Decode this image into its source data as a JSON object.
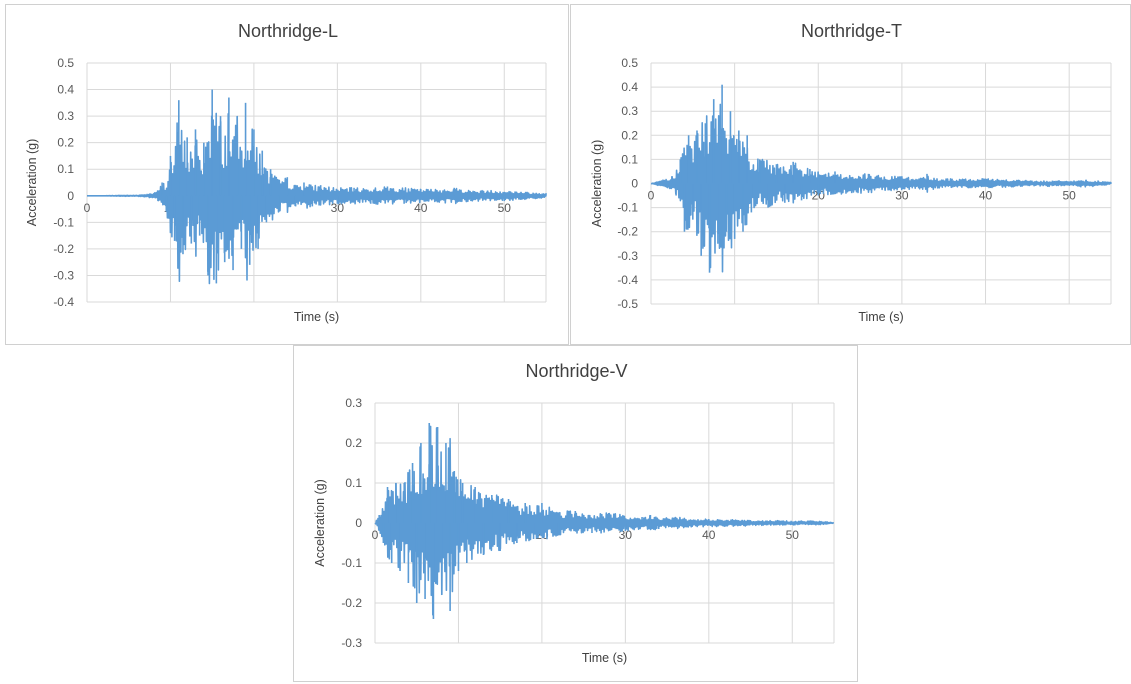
{
  "colors": {
    "series": "#5b9bd5",
    "grid": "#d9d9d9",
    "text": "#404040",
    "border": "#d0d0d0"
  },
  "chart_data": [
    {
      "type": "line",
      "title": "Northridge-L",
      "xlabel": "Time (s)",
      "ylabel": "Acceleration (g)",
      "xlim": [
        0,
        55
      ],
      "ylim": [
        -0.4,
        0.5
      ],
      "xticks": [
        "0",
        "10",
        "20",
        "30",
        "40",
        "50"
      ],
      "yticks": [
        "0.5",
        "0.4",
        "0.3",
        "0.2",
        "0.1",
        "0",
        "-0.1",
        "-0.2",
        "-0.3",
        "-0.4"
      ],
      "grid": true,
      "legend": "none",
      "series": [
        {
          "x": [
            0,
            2,
            4,
            6,
            7,
            7.5,
            8,
            8.5,
            9,
            9.5,
            10,
            10.5,
            11,
            11.5,
            12,
            12.5,
            13,
            13.5,
            14,
            14.5,
            15,
            15.5,
            16,
            16.5,
            17,
            17.5,
            18,
            18.5,
            19,
            19.5,
            20,
            20.5,
            21,
            21.5,
            22,
            23,
            24,
            25,
            26,
            27,
            28,
            30,
            32,
            34,
            36,
            38,
            40,
            42,
            44,
            46,
            48,
            50,
            52,
            54,
            55
          ],
          "y": [
            0,
            0,
            0.002,
            -0.002,
            0.005,
            0.008,
            0.01,
            -0.02,
            0.05,
            -0.06,
            0.15,
            -0.17,
            0.36,
            -0.22,
            0.22,
            -0.18,
            0.25,
            -0.15,
            0.2,
            -0.3,
            0.4,
            -0.33,
            0.3,
            -0.25,
            0.37,
            -0.28,
            0.3,
            -0.2,
            0.35,
            -0.26,
            0.25,
            -0.2,
            0.17,
            -0.1,
            0.1,
            -0.06,
            0.07,
            -0.04,
            0.05,
            -0.04,
            0.04,
            -0.03,
            0.03,
            -0.03,
            0.035,
            -0.03,
            0.025,
            -0.025,
            0.03,
            -0.02,
            0.02,
            -0.02,
            0.015,
            -0.01,
            0.01
          ]
        }
      ]
    },
    {
      "type": "line",
      "title": "Northridge-T",
      "xlabel": "Time (s)",
      "ylabel": "Acceleration (g)",
      "xlim": [
        0,
        55
      ],
      "ylim": [
        -0.5,
        0.5
      ],
      "xticks": [
        "0",
        "10",
        "20",
        "30",
        "40",
        "50"
      ],
      "yticks": [
        "0.5",
        "0.4",
        "0.3",
        "0.2",
        "0.1",
        "0",
        "-0.1",
        "-0.2",
        "-0.3",
        "-0.4",
        "-0.5"
      ],
      "grid": true,
      "legend": "none",
      "series": [
        {
          "x": [
            0,
            1,
            2,
            2.5,
            3,
            3.5,
            4,
            4.5,
            5,
            5.5,
            6,
            6.5,
            7,
            7.5,
            8,
            8.5,
            9,
            9.5,
            10,
            10.5,
            11,
            11.5,
            12,
            13,
            14,
            15,
            16,
            17,
            18,
            19,
            20,
            22,
            24,
            26,
            28,
            30,
            32,
            33,
            34,
            36,
            38,
            40,
            42,
            44,
            46,
            48,
            50,
            52,
            54,
            55
          ],
          "y": [
            0,
            0.01,
            -0.02,
            0.03,
            -0.05,
            0.1,
            -0.2,
            0.2,
            -0.15,
            0.22,
            -0.3,
            0.25,
            -0.37,
            0.35,
            -0.25,
            0.41,
            -0.2,
            0.3,
            -0.23,
            0.22,
            -0.2,
            0.2,
            -0.12,
            0.1,
            -0.1,
            0.08,
            -0.08,
            0.09,
            -0.07,
            0.06,
            -0.05,
            0.05,
            -0.04,
            0.04,
            -0.03,
            0.03,
            -0.02,
            0.04,
            -0.02,
            0.02,
            -0.02,
            0.02,
            -0.015,
            0.015,
            -0.01,
            0.012,
            -0.01,
            0.015,
            -0.008,
            0.005
          ]
        }
      ]
    },
    {
      "type": "line",
      "title": "Northridge-V",
      "xlabel": "Time (s)",
      "ylabel": "Acceleration (g)",
      "xlim": [
        0,
        55
      ],
      "ylim": [
        -0.3,
        0.3
      ],
      "xticks": [
        "0",
        "10",
        "20",
        "30",
        "40",
        "50"
      ],
      "yticks": [
        "0.3",
        "0.2",
        "0.1",
        "0",
        "-0.1",
        "-0.2",
        "-0.3"
      ],
      "grid": true,
      "legend": "none",
      "series": [
        {
          "x": [
            0,
            0.5,
            1,
            1.5,
            2,
            2.5,
            3,
            3.5,
            4,
            4.5,
            5,
            5.5,
            6,
            6.5,
            7,
            7.5,
            8,
            8.5,
            9,
            9.5,
            10,
            10.5,
            11,
            12,
            13,
            14,
            15,
            16,
            17,
            18,
            19,
            20,
            22,
            24,
            26,
            28,
            30,
            32,
            33,
            34,
            36,
            38,
            40,
            42,
            44,
            46,
            48,
            50,
            52,
            54,
            55
          ],
          "y": [
            0,
            0.02,
            -0.05,
            0.09,
            -0.1,
            0.1,
            -0.12,
            0.1,
            -0.15,
            0.15,
            -0.2,
            0.2,
            -0.19,
            0.25,
            -0.24,
            0.24,
            -0.18,
            0.2,
            -0.22,
            0.13,
            -0.12,
            0.1,
            -0.1,
            0.09,
            -0.08,
            0.07,
            -0.07,
            0.06,
            -0.05,
            0.05,
            -0.04,
            0.05,
            -0.03,
            0.03,
            -0.025,
            0.025,
            -0.02,
            0.015,
            0.02,
            -0.015,
            0.015,
            -0.01,
            0.01,
            -0.008,
            0.008,
            -0.006,
            0.006,
            -0.005,
            0.005,
            -0.004,
            0
          ]
        }
      ]
    }
  ]
}
